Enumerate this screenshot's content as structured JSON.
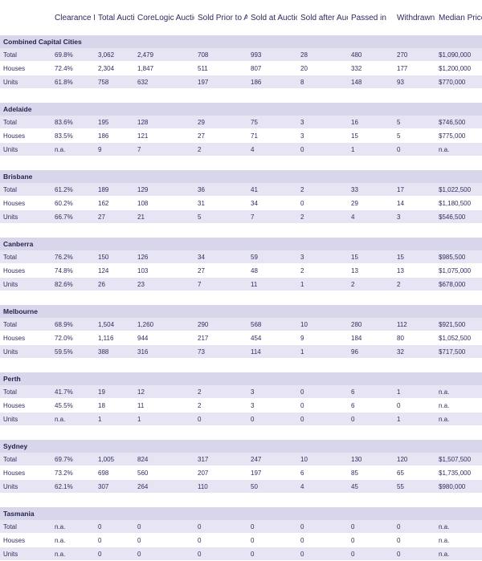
{
  "header": {
    "columns": [
      "",
      "Clearance Rate",
      "Total Auctions",
      "CoreLogic Auction Results",
      "Sold Prior to Auction",
      "Sold at Auction",
      "Sold after Auction",
      "Passed in",
      "Withdrawn",
      "Median Price"
    ]
  },
  "regions": [
    {
      "name": "Combined Capital Cities",
      "rows": [
        [
          "Total",
          "69.8%",
          "3,062",
          "2,479",
          "708",
          "993",
          "28",
          "480",
          "270",
          "$1,090,000"
        ],
        [
          "Houses",
          "72.4%",
          "2,304",
          "1,847",
          "511",
          "807",
          "20",
          "332",
          "177",
          "$1,200,000"
        ],
        [
          "Units",
          "61.8%",
          "758",
          "632",
          "197",
          "186",
          "8",
          "148",
          "93",
          "$770,000"
        ]
      ]
    },
    {
      "name": "Adelaide",
      "rows": [
        [
          "Total",
          "83.6%",
          "195",
          "128",
          "29",
          "75",
          "3",
          "16",
          "5",
          "$746,500"
        ],
        [
          "Houses",
          "83.5%",
          "186",
          "121",
          "27",
          "71",
          "3",
          "15",
          "5",
          "$775,000"
        ],
        [
          "Units",
          "n.a.",
          "9",
          "7",
          "2",
          "4",
          "0",
          "1",
          "0",
          "n.a."
        ]
      ]
    },
    {
      "name": "Brisbane",
      "rows": [
        [
          "Total",
          "61.2%",
          "189",
          "129",
          "36",
          "41",
          "2",
          "33",
          "17",
          "$1,022,500"
        ],
        [
          "Houses",
          "60.2%",
          "162",
          "108",
          "31",
          "34",
          "0",
          "29",
          "14",
          "$1,180,500"
        ],
        [
          "Units",
          "66.7%",
          "27",
          "21",
          "5",
          "7",
          "2",
          "4",
          "3",
          "$546,500"
        ]
      ]
    },
    {
      "name": "Canberra",
      "rows": [
        [
          "Total",
          "76.2%",
          "150",
          "126",
          "34",
          "59",
          "3",
          "15",
          "15",
          "$985,500"
        ],
        [
          "Houses",
          "74.8%",
          "124",
          "103",
          "27",
          "48",
          "2",
          "13",
          "13",
          "$1,075,000"
        ],
        [
          "Units",
          "82.6%",
          "26",
          "23",
          "7",
          "11",
          "1",
          "2",
          "2",
          "$678,000"
        ]
      ]
    },
    {
      "name": "Melbourne",
      "rows": [
        [
          "Total",
          "68.9%",
          "1,504",
          "1,260",
          "290",
          "568",
          "10",
          "280",
          "112",
          "$921,500"
        ],
        [
          "Houses",
          "72.0%",
          "1,116",
          "944",
          "217",
          "454",
          "9",
          "184",
          "80",
          "$1,052,500"
        ],
        [
          "Units",
          "59.5%",
          "388",
          "316",
          "73",
          "114",
          "1",
          "96",
          "32",
          "$717,500"
        ]
      ]
    },
    {
      "name": "Perth",
      "rows": [
        [
          "Total",
          "41.7%",
          "19",
          "12",
          "2",
          "3",
          "0",
          "6",
          "1",
          "n.a."
        ],
        [
          "Houses",
          "45.5%",
          "18",
          "11",
          "2",
          "3",
          "0",
          "6",
          "0",
          "n.a."
        ],
        [
          "Units",
          "n.a.",
          "1",
          "1",
          "0",
          "0",
          "0",
          "0",
          "1",
          "n.a."
        ]
      ]
    },
    {
      "name": "Sydney",
      "rows": [
        [
          "Total",
          "69.7%",
          "1,005",
          "824",
          "317",
          "247",
          "10",
          "130",
          "120",
          "$1,507,500"
        ],
        [
          "Houses",
          "73.2%",
          "698",
          "560",
          "207",
          "197",
          "6",
          "85",
          "65",
          "$1,735,000"
        ],
        [
          "Units",
          "62.1%",
          "307",
          "264",
          "110",
          "50",
          "4",
          "45",
          "55",
          "$980,000"
        ]
      ]
    },
    {
      "name": "Tasmania",
      "rows": [
        [
          "Total",
          "n.a.",
          "0",
          "0",
          "0",
          "0",
          "0",
          "0",
          "0",
          "n.a."
        ],
        [
          "Houses",
          "n.a.",
          "0",
          "0",
          "0",
          "0",
          "0",
          "0",
          "0",
          "n.a."
        ],
        [
          "Units",
          "n.a.",
          "0",
          "0",
          "0",
          "0",
          "0",
          "0",
          "0",
          "n.a."
        ]
      ]
    }
  ]
}
